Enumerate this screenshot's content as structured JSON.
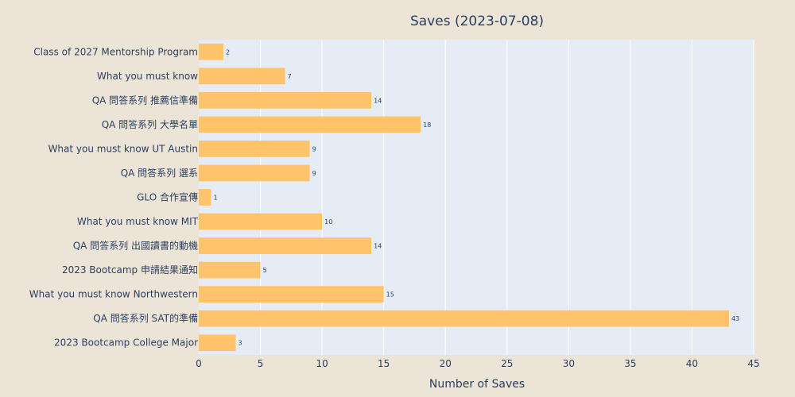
{
  "chart_data": {
    "type": "bar",
    "orientation": "horizontal",
    "title": "Saves (2023-07-08)",
    "xlabel": "Number of Saves",
    "ylabel": "",
    "xlim": [
      0,
      45
    ],
    "xticks": [
      0,
      5,
      10,
      15,
      20,
      25,
      30,
      35,
      40,
      45
    ],
    "grid": true,
    "bar_color": "#ffc46b",
    "plot_bg": "#e5ecf6",
    "paper_bg": "#ede4d8",
    "categories": [
      "Class of 2027 Mentorship Program",
      "What you must know",
      "QA 問答系列 推薦信準備",
      "QA 問答系列 大學名單",
      "What you must know UT Austin",
      "QA 問答系列 選系",
      "GLO 合作宣傳",
      "What you must know MIT",
      "QA 問答系列 出國讀書的動機",
      "2023 Bootcamp 申請結果通知",
      "What you must know Northwestern",
      "QA 問答系列 SAT的準備",
      "2023 Bootcamp College Major"
    ],
    "values": [
      2,
      7,
      14,
      18,
      9,
      9,
      1,
      10,
      14,
      5,
      15,
      43,
      3
    ]
  }
}
